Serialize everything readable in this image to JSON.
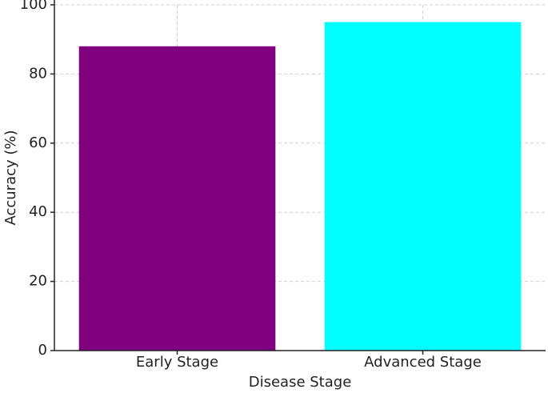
{
  "chart_data": {
    "type": "bar",
    "x_label": "Disease Stage",
    "y_label": "Accuracy (%)",
    "categories": [
      "Early Stage",
      "Advanced Stage"
    ],
    "values": [
      88,
      95
    ],
    "colors": [
      "#800080",
      "#00ffff"
    ],
    "ylim": [
      0,
      100
    ],
    "yticks": [
      0,
      20,
      40,
      60,
      80,
      100
    ],
    "grid": true
  }
}
